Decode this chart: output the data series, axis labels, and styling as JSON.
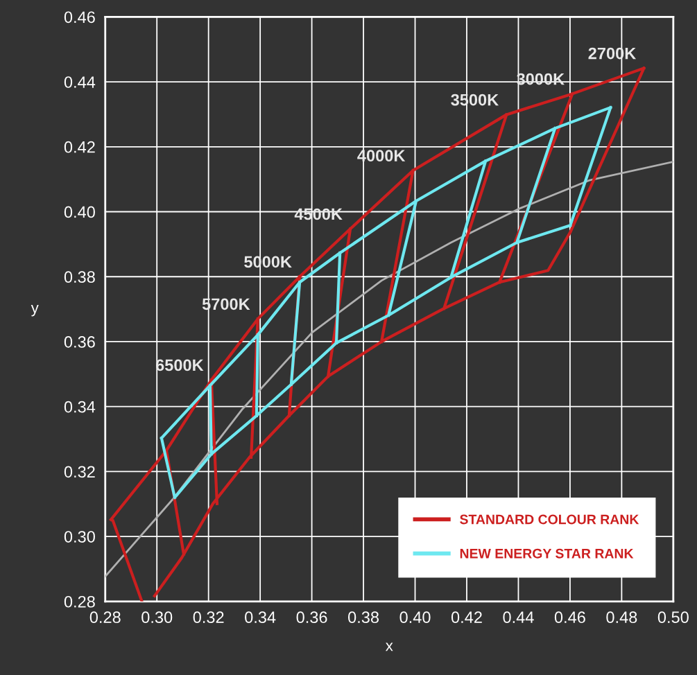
{
  "chart_data": {
    "type": "line",
    "xlabel": "x",
    "ylabel": "y",
    "xlim": [
      0.28,
      0.5
    ],
    "ylim": [
      0.28,
      0.46
    ],
    "xticks": [
      {
        "value": 0.28,
        "label": "0.28"
      },
      {
        "value": 0.3,
        "label": "0.30"
      },
      {
        "value": 0.32,
        "label": "0.32"
      },
      {
        "value": 0.34,
        "label": "0.34"
      },
      {
        "value": 0.36,
        "label": "0.36"
      },
      {
        "value": 0.38,
        "label": "0.38"
      },
      {
        "value": 0.4,
        "label": "0.40"
      },
      {
        "value": 0.42,
        "label": "0.42"
      },
      {
        "value": 0.44,
        "label": "0.44"
      },
      {
        "value": 0.46,
        "label": "0.46"
      },
      {
        "value": 0.48,
        "label": "0.48"
      },
      {
        "value": 0.5,
        "label": "0.50"
      }
    ],
    "yticks": [
      {
        "value": 0.28,
        "label": "0.28"
      },
      {
        "value": 0.3,
        "label": "0.30"
      },
      {
        "value": 0.32,
        "label": "0.32"
      },
      {
        "value": 0.34,
        "label": "0.34"
      },
      {
        "value": 0.36,
        "label": "0.36"
      },
      {
        "value": 0.38,
        "label": "0.38"
      },
      {
        "value": 0.4,
        "label": "0.40"
      },
      {
        "value": 0.42,
        "label": "0.42"
      },
      {
        "value": 0.44,
        "label": "0.44"
      },
      {
        "value": 0.46,
        "label": "0.46"
      }
    ],
    "grid": true,
    "legend": "bottom right",
    "marker": "none",
    "series": [
      {
        "color": "#b0b0b0",
        "x": [
          0.28,
          0.3063,
          0.3332,
          0.3601,
          0.387,
          0.4139,
          0.4408,
          0.4676,
          0.5
        ],
        "values": [
          0.2877,
          0.3116,
          0.3393,
          0.3628,
          0.3788,
          0.3905,
          0.4011,
          0.4097,
          0.4154
        ]
      },
      {
        "name": "STANDARD COLOUR RANK",
        "color": "#cc1f1f",
        "x": [
          0.2822,
          0.3037,
          0.3211,
          0.3391,
          0.3553,
          0.3749,
          0.3992,
          0.4354,
          0.4609,
          0.4886,
          null,
          0.2991,
          0.3096,
          0.3217,
          0.3359,
          0.3512,
          0.3663,
          0.387,
          0.4112,
          0.4327,
          0.4515,
          0.4601,
          null,
          0.283,
          0.2942,
          null,
          0.3037,
          0.3104,
          null,
          0.3211,
          0.3233,
          null,
          0.3391,
          0.3365,
          null,
          0.3553,
          0.3512,
          null,
          0.3749,
          0.3663,
          null,
          0.3992,
          0.387,
          null,
          0.4354,
          0.4112,
          null,
          0.4609,
          0.4327,
          null,
          0.4886,
          0.4601
        ],
        "values": [
          0.3052,
          0.3265,
          0.3482,
          0.367,
          0.38,
          0.3947,
          0.4127,
          0.4299,
          0.4363,
          0.4442,
          null,
          0.2817,
          0.2934,
          0.3101,
          0.3244,
          0.3372,
          0.3493,
          0.36,
          0.3702,
          0.3783,
          0.3819,
          0.3937,
          null,
          0.3048,
          0.28,
          null,
          0.3265,
          0.2945,
          null,
          0.3482,
          0.3101,
          null,
          0.367,
          0.3244,
          null,
          0.38,
          0.3372,
          null,
          0.3947,
          0.3493,
          null,
          0.4127,
          0.36,
          null,
          0.4299,
          0.3702,
          null,
          0.4363,
          0.3783,
          null,
          0.4442,
          0.3937
        ]
      },
      {
        "name": "NEW ENERGY STAR RANK",
        "color": "#6ee8f0",
        "x": [
          0.3018,
          0.3206,
          0.3391,
          0.3553,
          0.3709,
          0.4004,
          0.4273,
          0.4542,
          0.4757,
          null,
          0.3069,
          0.3211,
          0.3386,
          0.352,
          0.3695,
          0.3897,
          0.4139,
          0.4394,
          0.4601,
          null,
          0.3018,
          0.3069,
          null,
          0.3206,
          0.3211,
          null,
          0.3391,
          0.3386,
          null,
          0.3553,
          0.352,
          null,
          0.3709,
          0.3695,
          null,
          0.4004,
          0.3897,
          null,
          0.4273,
          0.4139,
          null,
          0.4542,
          0.4394,
          null,
          0.4757,
          0.4601
        ],
        "values": [
          0.3303,
          0.3465,
          0.3621,
          0.3783,
          0.3873,
          0.4033,
          0.4156,
          0.4257,
          0.4321,
          null,
          0.312,
          0.3254,
          0.3372,
          0.3468,
          0.3596,
          0.3681,
          0.3798,
          0.3905,
          0.3958,
          null,
          0.3303,
          0.312,
          null,
          0.3465,
          0.3254,
          null,
          0.3621,
          0.3372,
          null,
          0.3783,
          0.3468,
          null,
          0.3873,
          0.3596,
          null,
          0.4033,
          0.3681,
          null,
          0.4156,
          0.3798,
          null,
          0.4257,
          0.3905,
          null,
          0.4321,
          0.3958
        ]
      }
    ],
    "annotations": [
      {
        "text": "6500K",
        "x": 0.3211,
        "y": 0.3482
      },
      {
        "text": "5700K",
        "x": 0.3391,
        "y": 0.367
      },
      {
        "text": "5000K",
        "x": 0.3553,
        "y": 0.38
      },
      {
        "text": "4500K",
        "x": 0.3749,
        "y": 0.3947
      },
      {
        "text": "4000K",
        "x": 0.3992,
        "y": 0.4127
      },
      {
        "text": "3500K",
        "x": 0.4354,
        "y": 0.4299
      },
      {
        "text": "3000K",
        "x": 0.4609,
        "y": 0.4363
      },
      {
        "text": "2700K",
        "x": 0.4886,
        "y": 0.4442
      }
    ]
  }
}
